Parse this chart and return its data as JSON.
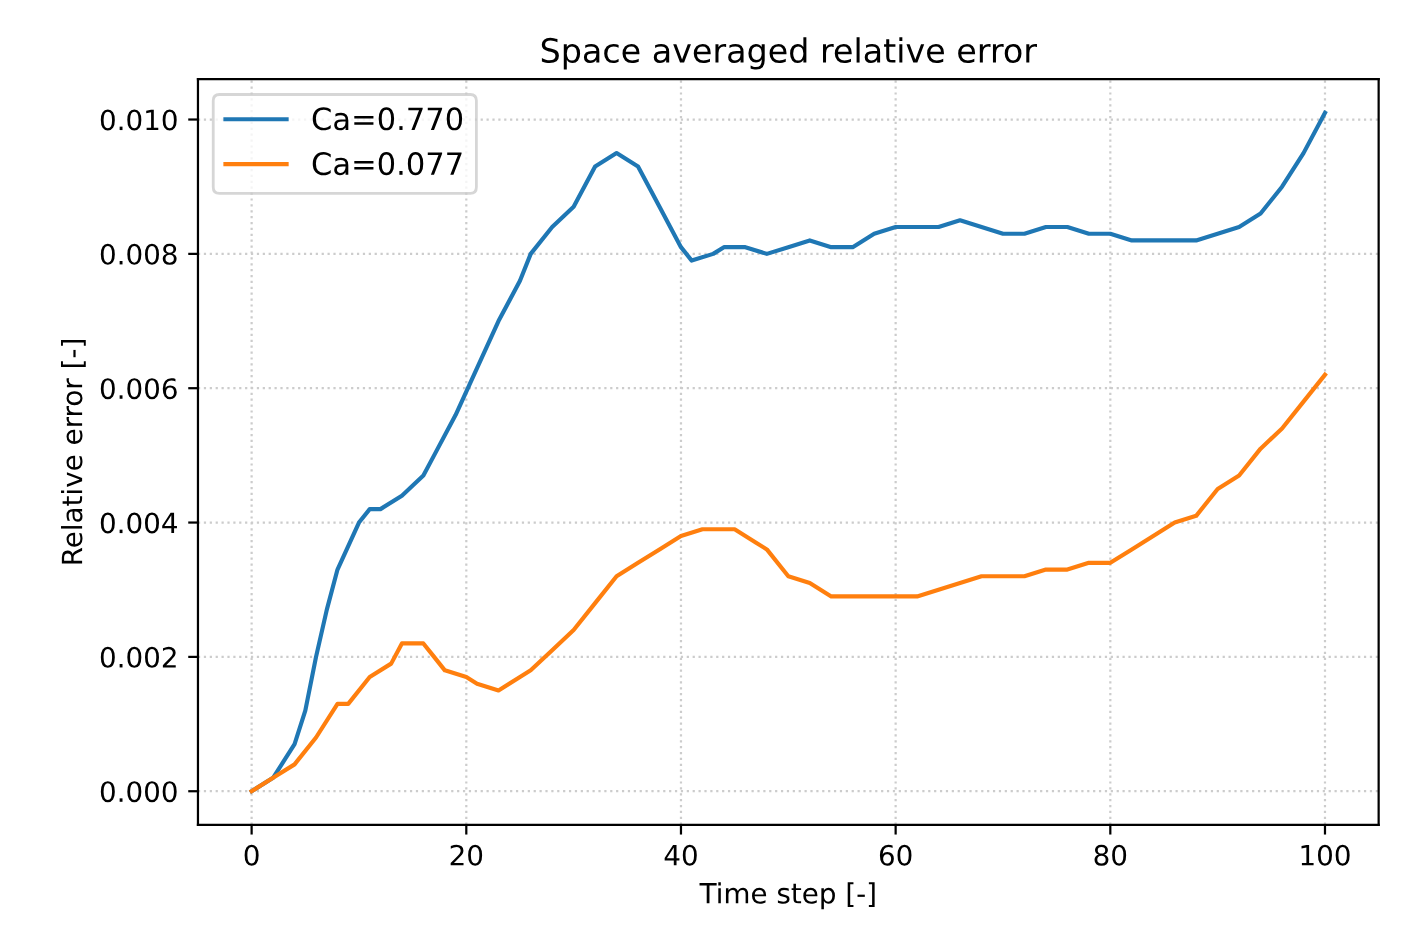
{
  "chart_data": {
    "type": "line",
    "title": "Space averaged relative error",
    "xlabel": "Time step [-]",
    "ylabel": "Relative error [-]",
    "xlim": [
      -5,
      105
    ],
    "xticks": [
      0,
      20,
      40,
      60,
      80,
      100
    ],
    "ylim": [
      -0.0005,
      0.0106
    ],
    "yticks": [
      {
        "value": 0,
        "label": "0.000"
      },
      {
        "value": 0.002,
        "label": "0.002"
      },
      {
        "value": 0.004,
        "label": "0.004"
      },
      {
        "value": 0.006,
        "label": "0.006"
      },
      {
        "value": 0.008,
        "label": "0.008"
      },
      {
        "value": 0.01,
        "label": "0.010"
      }
    ],
    "grid": true,
    "legend": "top left",
    "line_style": "solid",
    "marker": "none",
    "series": [
      {
        "name": "Ca=0.770",
        "color": "#1f77b4",
        "x": [
          0,
          2,
          4,
          5,
          6,
          7,
          8,
          10,
          11,
          12,
          14,
          16,
          17,
          19,
          21,
          23,
          25,
          26,
          28,
          30,
          32,
          34,
          36,
          38,
          40,
          41,
          43,
          44,
          46,
          48,
          50,
          52,
          54,
          56,
          58,
          60,
          62,
          64,
          66,
          68,
          70,
          72,
          74,
          76,
          78,
          80,
          82,
          84,
          86,
          88,
          90,
          92,
          94,
          96,
          98,
          100
        ],
        "values": [
          0,
          0.0002,
          0.0007,
          0.0012,
          0.002,
          0.0027,
          0.0033,
          0.004,
          0.0042,
          0.0042,
          0.0044,
          0.0047,
          0.005,
          0.0056,
          0.0063,
          0.007,
          0.0076,
          0.008,
          0.0084,
          0.0087,
          0.0093,
          0.0095,
          0.0093,
          0.0087,
          0.0081,
          0.0079,
          0.008,
          0.0081,
          0.0081,
          0.008,
          0.0081,
          0.0082,
          0.0081,
          0.0081,
          0.0083,
          0.0084,
          0.0084,
          0.0084,
          0.0085,
          0.0084,
          0.0083,
          0.0083,
          0.0084,
          0.0084,
          0.0083,
          0.0083,
          0.0082,
          0.0082,
          0.0082,
          0.0082,
          0.0083,
          0.0084,
          0.0086,
          0.009,
          0.0095,
          0.0101
        ]
      },
      {
        "name": "Ca=0.077",
        "color": "#ff7f0e",
        "x": [
          0,
          2,
          4,
          6,
          8,
          9,
          11,
          13,
          14,
          16,
          17,
          18,
          20,
          21,
          23,
          25,
          26,
          28,
          30,
          32,
          34,
          36,
          38,
          40,
          42,
          43,
          45,
          47,
          48,
          50,
          52,
          54,
          56,
          58,
          60,
          62,
          64,
          66,
          68,
          70,
          72,
          74,
          76,
          78,
          80,
          82,
          84,
          86,
          88,
          90,
          92,
          94,
          96,
          98,
          100
        ],
        "values": [
          0,
          0.0002,
          0.0004,
          0.0008,
          0.0013,
          0.0013,
          0.0017,
          0.0019,
          0.0022,
          0.0022,
          0.002,
          0.0018,
          0.0017,
          0.0016,
          0.0015,
          0.0017,
          0.0018,
          0.0021,
          0.0024,
          0.0028,
          0.0032,
          0.0034,
          0.0036,
          0.0038,
          0.0039,
          0.0039,
          0.0039,
          0.0037,
          0.0036,
          0.0032,
          0.0031,
          0.0029,
          0.0029,
          0.0029,
          0.0029,
          0.0029,
          0.003,
          0.0031,
          0.0032,
          0.0032,
          0.0032,
          0.0033,
          0.0033,
          0.0034,
          0.0034,
          0.0036,
          0.0038,
          0.004,
          0.0041,
          0.0045,
          0.0047,
          0.0051,
          0.0054,
          0.0058,
          0.0062
        ]
      }
    ]
  }
}
